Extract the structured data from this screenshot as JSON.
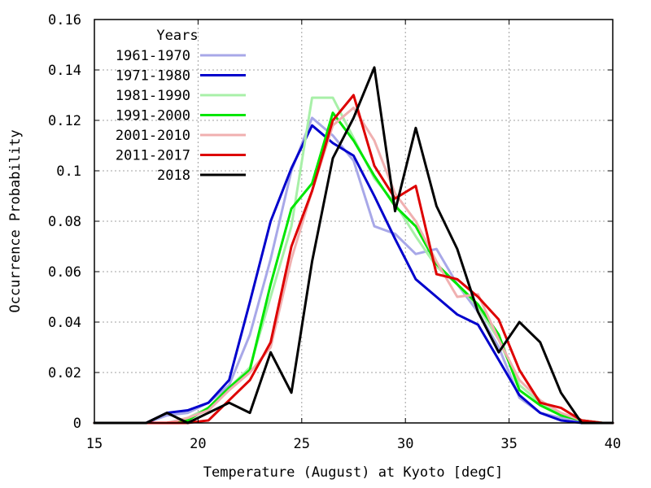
{
  "chart_data": {
    "type": "line",
    "title": "",
    "xlabel": "Temperature (August) at Kyoto [degC]",
    "ylabel": "Occurrence Probability",
    "xlim": [
      15,
      40
    ],
    "ylim": [
      0,
      0.16
    ],
    "xticks": [
      15,
      20,
      25,
      30,
      35,
      40
    ],
    "xtick_labels": [
      "15",
      "20",
      "25",
      "30",
      "35",
      "40"
    ],
    "yticks": [
      0,
      0.02,
      0.04,
      0.06,
      0.08,
      0.1,
      0.12,
      0.14,
      0.16
    ],
    "ytick_labels": [
      "0",
      "0.02",
      "0.04",
      "0.06",
      "0.08",
      "0.1",
      "0.12",
      "0.14",
      "0.16"
    ],
    "grid": true,
    "legend_title": "Years",
    "legend_position": "top-left",
    "x": [
      15.5,
      16.5,
      17.5,
      18.5,
      19.5,
      20.5,
      21.5,
      22.5,
      23.5,
      24.5,
      25.5,
      26.5,
      27.5,
      28.5,
      29.5,
      30.5,
      31.5,
      32.5,
      33.5,
      34.5,
      35.5,
      36.5,
      37.5,
      38.5,
      39.5
    ],
    "series": [
      {
        "name": "1961-1970",
        "color": "#a8a8e8",
        "values": [
          0,
          0,
          0,
          0.003,
          0.004,
          0.008,
          0.015,
          0.035,
          0.065,
          0.1,
          0.121,
          0.114,
          0.104,
          0.078,
          0.075,
          0.067,
          0.069,
          0.055,
          0.044,
          0.03,
          0.01,
          0.004,
          0.002,
          0.001,
          0
        ]
      },
      {
        "name": "1971-1980",
        "color": "#0000cc",
        "values": [
          0,
          0,
          0,
          0.004,
          0.005,
          0.008,
          0.017,
          0.048,
          0.08,
          0.101,
          0.118,
          0.111,
          0.106,
          0.09,
          0.073,
          0.057,
          0.05,
          0.043,
          0.039,
          0.025,
          0.011,
          0.004,
          0.001,
          0,
          0
        ]
      },
      {
        "name": "1981-1990",
        "color": "#a8f0a8",
        "values": [
          0,
          0,
          0,
          0,
          0.002,
          0.006,
          0.014,
          0.022,
          0.05,
          0.078,
          0.129,
          0.129,
          0.113,
          0.097,
          0.087,
          0.074,
          0.062,
          0.055,
          0.046,
          0.033,
          0.015,
          0.008,
          0.003,
          0.001,
          0
        ]
      },
      {
        "name": "1991-2000",
        "color": "#00e600",
        "values": [
          0,
          0,
          0,
          0,
          0.001,
          0.006,
          0.014,
          0.021,
          0.055,
          0.085,
          0.095,
          0.123,
          0.112,
          0.098,
          0.086,
          0.078,
          0.063,
          0.055,
          0.047,
          0.035,
          0.013,
          0.007,
          0.003,
          0.001,
          0
        ]
      },
      {
        "name": "2001-2010",
        "color": "#f0b0b0",
        "values": [
          0,
          0,
          0,
          0,
          0.002,
          0.005,
          0.013,
          0.02,
          0.03,
          0.065,
          0.092,
          0.118,
          0.125,
          0.112,
          0.091,
          0.08,
          0.064,
          0.05,
          0.051,
          0.033,
          0.017,
          0.009,
          0.004,
          0.001,
          0
        ]
      },
      {
        "name": "2011-2017",
        "color": "#dd0000",
        "values": [
          0,
          0,
          0,
          0,
          0,
          0.001,
          0.009,
          0.017,
          0.032,
          0.07,
          0.092,
          0.12,
          0.13,
          0.102,
          0.089,
          0.094,
          0.059,
          0.057,
          0.05,
          0.041,
          0.021,
          0.008,
          0.006,
          0.001,
          0
        ]
      },
      {
        "name": "2018",
        "color": "#000000",
        "values": [
          0,
          0,
          0,
          0.004,
          0,
          0.004,
          0.008,
          0.004,
          0.028,
          0.012,
          0.064,
          0.105,
          0.121,
          0.141,
          0.084,
          0.117,
          0.086,
          0.069,
          0.044,
          0.028,
          0.04,
          0.032,
          0.012,
          0,
          0
        ]
      }
    ]
  }
}
